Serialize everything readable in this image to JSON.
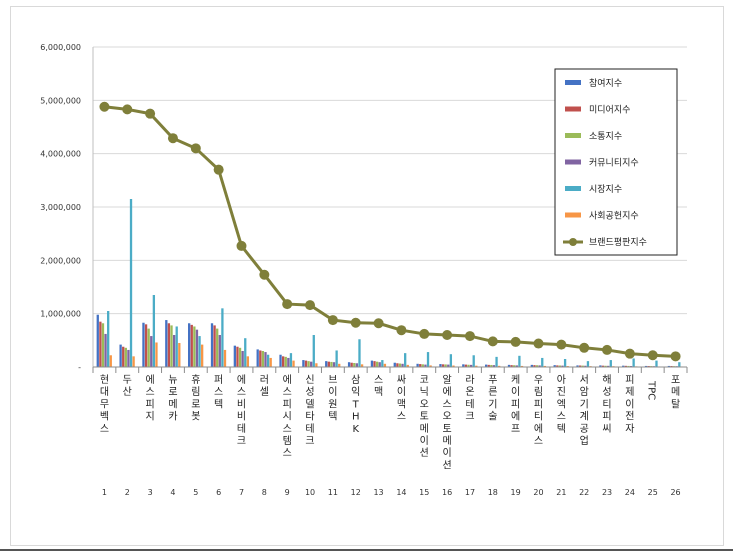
{
  "chart_data": {
    "type": "bar",
    "title": "",
    "xlabel": "",
    "ylabel": "",
    "ylim": [
      0,
      6000000
    ],
    "yticks": [
      "6,000,000",
      "5,000,000",
      "4,000,000",
      "3,000,000",
      "2,000,000",
      "1,000,000",
      "-"
    ],
    "ytick_values": [
      6000000,
      5000000,
      4000000,
      3000000,
      2000000,
      1000000,
      0
    ],
    "legend_position": "top-right",
    "indices": [
      "1",
      "2",
      "3",
      "4",
      "5",
      "6",
      "7",
      "8",
      "9",
      "10",
      "11",
      "12",
      "13",
      "14",
      "15",
      "16",
      "17",
      "18",
      "19",
      "20",
      "21",
      "22",
      "23",
      "24",
      "25",
      "26"
    ],
    "categories": [
      "현대무벡스",
      "두산",
      "에스피지",
      "뉴로메카",
      "휴림로봇",
      "퍼스텍",
      "에스비비테크",
      "러셀",
      "에스피시스템스",
      "신성델타테크",
      "브이원텍",
      "삼익THK",
      "스맥",
      "싸이맥스",
      "코닉오토메이션",
      "알에스오토메이션",
      "라온테크",
      "푸른기술",
      "케이피에프",
      "우림피티에스",
      "아진엑스텍",
      "서암기계공업",
      "해성티피씨",
      "피제이전자",
      "TPC",
      "포메탈"
    ],
    "series": [
      {
        "name": "참여지수",
        "color": "#4472c4",
        "values": [
          980000,
          420000,
          830000,
          880000,
          820000,
          820000,
          400000,
          330000,
          230000,
          130000,
          110000,
          90000,
          120000,
          80000,
          60000,
          55000,
          50000,
          45000,
          40000,
          40000,
          35000,
          30000,
          30000,
          25000,
          20000,
          20000
        ]
      },
      {
        "name": "미디어지수",
        "color": "#c0504d",
        "values": [
          850000,
          380000,
          800000,
          820000,
          790000,
          780000,
          380000,
          310000,
          200000,
          120000,
          100000,
          80000,
          110000,
          70000,
          55000,
          50000,
          45000,
          40000,
          35000,
          35000,
          30000,
          28000,
          25000,
          22000,
          18000,
          18000
        ]
      },
      {
        "name": "소통지수",
        "color": "#9bbb59",
        "values": [
          820000,
          360000,
          720000,
          780000,
          760000,
          720000,
          360000,
          300000,
          190000,
          110000,
          95000,
          75000,
          100000,
          65000,
          50000,
          48000,
          42000,
          38000,
          33000,
          33000,
          28000,
          26000,
          23000,
          20000,
          17000,
          16000
        ]
      },
      {
        "name": "커뮤니티지수",
        "color": "#8064a2",
        "values": [
          620000,
          320000,
          580000,
          600000,
          700000,
          600000,
          300000,
          280000,
          170000,
          100000,
          90000,
          70000,
          90000,
          60000,
          45000,
          45000,
          40000,
          35000,
          30000,
          30000,
          26000,
          24000,
          22000,
          18000,
          15000,
          15000
        ]
      },
      {
        "name": "시장지수",
        "color": "#4bacc6",
        "values": [
          1050000,
          3150000,
          1350000,
          760000,
          580000,
          1100000,
          540000,
          230000,
          260000,
          600000,
          310000,
          520000,
          130000,
          260000,
          280000,
          240000,
          220000,
          190000,
          210000,
          170000,
          150000,
          110000,
          130000,
          160000,
          120000,
          90000
        ]
      },
      {
        "name": "사회공헌지수",
        "color": "#f79646",
        "values": [
          220000,
          200000,
          460000,
          450000,
          420000,
          320000,
          200000,
          170000,
          120000,
          70000,
          60000,
          50000,
          60000,
          40000,
          30000,
          28000,
          25000,
          22000,
          20000,
          20000,
          18000,
          16000,
          15000,
          12000,
          10000,
          10000
        ]
      },
      {
        "name": "브랜드평판지수",
        "color": "#7f7f3a",
        "values": [
          4880000,
          4830000,
          4750000,
          4290000,
          4100000,
          3700000,
          2270000,
          1730000,
          1180000,
          1160000,
          880000,
          830000,
          820000,
          690000,
          620000,
          600000,
          580000,
          480000,
          470000,
          440000,
          420000,
          360000,
          320000,
          250000,
          220000,
          200000
        ]
      }
    ]
  }
}
